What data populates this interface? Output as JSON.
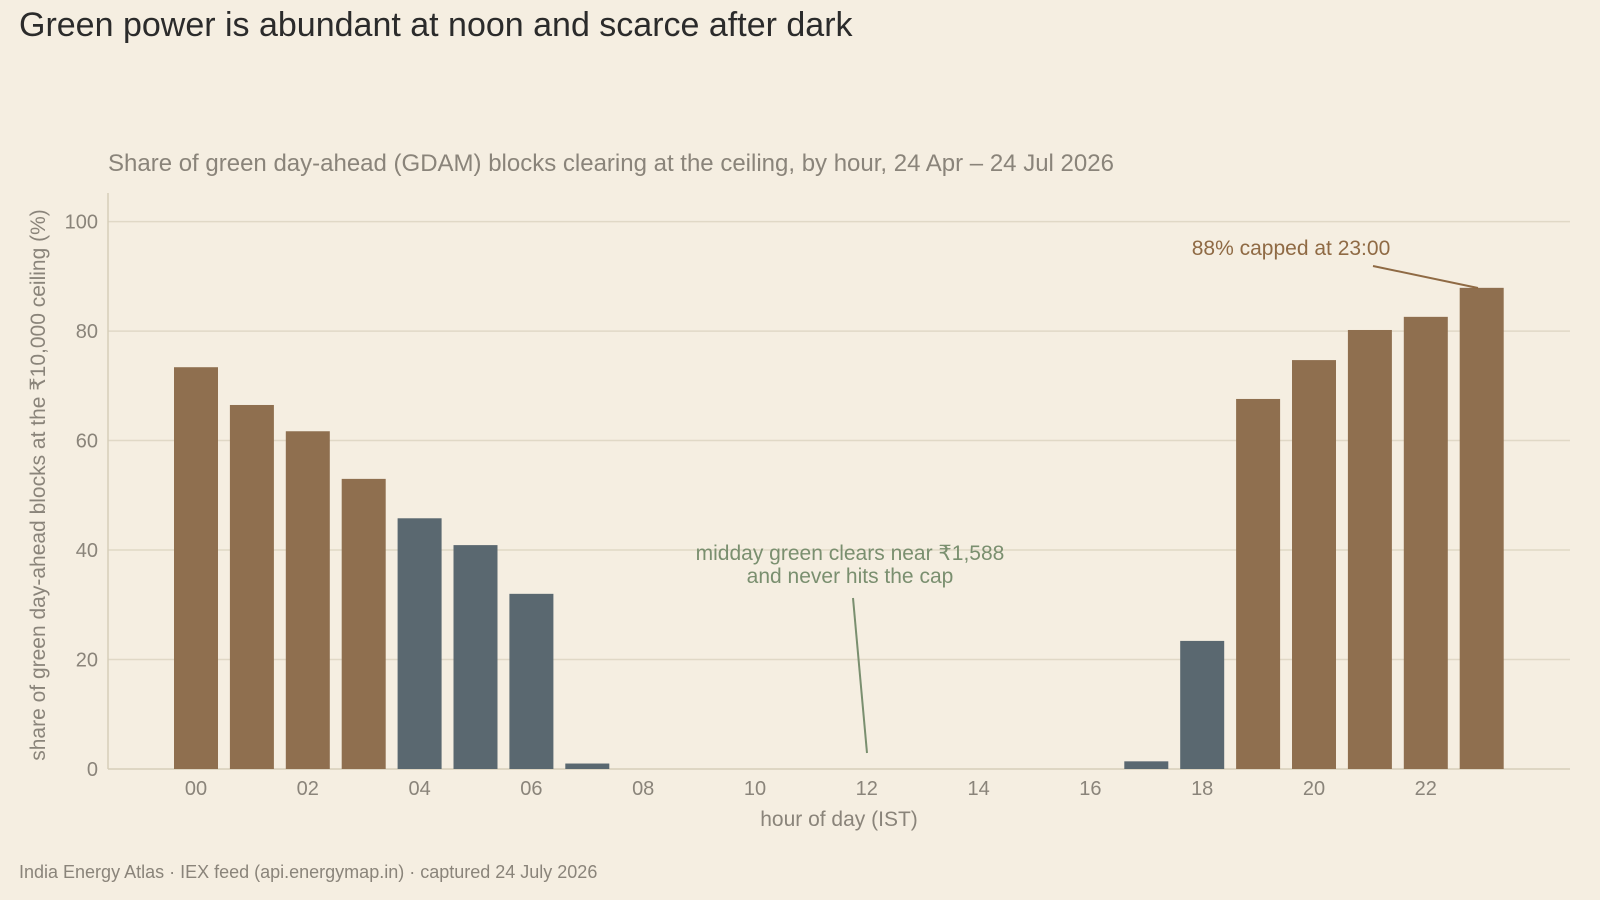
{
  "title": "Green power is abundant at noon and scarce after dark",
  "footer": "India Energy Atlas · IEX feed (api.energymap.in) · captured 24 July 2026",
  "chart_data": {
    "type": "bar",
    "subtitle": "Share of green day-ahead (GDAM) blocks clearing at the ceiling, by hour, 24 Apr – 24 Jul 2026",
    "xlabel": "hour of day (IST)",
    "ylabel": "share of green day-ahead blocks at the ₹10,000 ceiling (%)",
    "ylim": [
      0,
      105
    ],
    "grid": true,
    "x_ticks": [
      "00",
      "02",
      "04",
      "06",
      "08",
      "10",
      "12",
      "14",
      "16",
      "18",
      "20",
      "22"
    ],
    "y_ticks": [
      "0",
      "20",
      "40",
      "60",
      "80",
      "100"
    ],
    "categories": [
      "00",
      "01",
      "02",
      "03",
      "04",
      "05",
      "06",
      "07",
      "08",
      "09",
      "10",
      "11",
      "12",
      "13",
      "14",
      "15",
      "16",
      "17",
      "18",
      "19",
      "20",
      "21",
      "22",
      "23"
    ],
    "values": [
      73.4,
      66.5,
      61.7,
      53.0,
      45.8,
      40.9,
      32.0,
      1.0,
      0,
      0,
      0,
      0,
      0,
      0,
      0,
      0,
      0,
      1.4,
      23.4,
      67.6,
      74.7,
      80.2,
      82.6,
      87.9
    ],
    "bar_colors": [
      "#8f6f4f",
      "#8f6f4f",
      "#8f6f4f",
      "#8f6f4f",
      "#5a6870",
      "#5a6870",
      "#5a6870",
      "#5a6870",
      "#5a6870",
      "#5a6870",
      "#5a6870",
      "#5a6870",
      "#5a6870",
      "#5a6870",
      "#5a6870",
      "#5a6870",
      "#5a6870",
      "#5a6870",
      "#5a6870",
      "#8f6f4f",
      "#8f6f4f",
      "#8f6f4f",
      "#8f6f4f",
      "#8f6f4f"
    ],
    "annotations": {
      "peak": "88% capped at 23:00",
      "midday_line1": "midday green clears near ₹1,588",
      "midday_line2": "and never hits the cap"
    },
    "colors": {
      "background": "#f5eee1",
      "grid": "#e0d8c6",
      "axis": "#d6ceb9",
      "peak_annotation": "#8f6a44",
      "midday_annotation": "#7a8f6f"
    }
  }
}
